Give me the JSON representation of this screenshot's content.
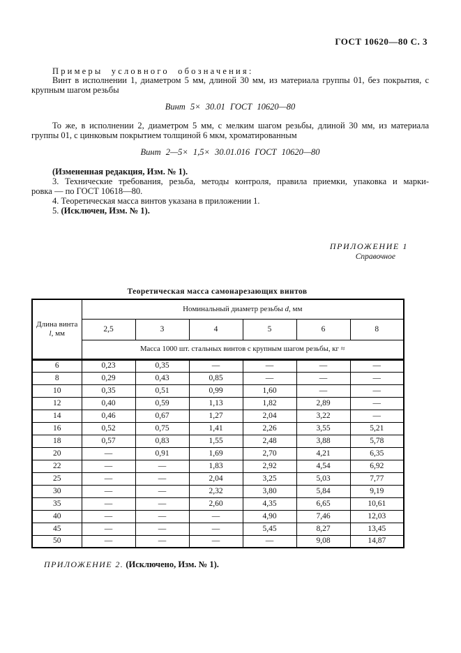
{
  "colors": {
    "text": "#141414",
    "border": "#000000",
    "background": "#ffffff"
  },
  "header": {
    "title": "ГОСТ 10620—80 С. 3"
  },
  "body": {
    "examples_heading": "Примеры условного обозначения:",
    "example1": {
      "line1": "Винт в исполнении 1, диаметром 5 мм, длиной 30 мм, из материала группы 01, без покрытия, с",
      "line2": "крупным шагом резьбы"
    },
    "designation1": "Винт 5× 30.01 ГОСТ 10620—80",
    "example2": {
      "line1": "То же, в исполнении 2, диаметром 5 мм, с мелким шагом резьбы, длиной 30 мм, из материала",
      "line2": "группы 01, с цинковым покрытием толщиной 6 мкм, хроматированным"
    },
    "designation2": "Винт 2—5× 1,5× 30.01.016 ГОСТ 10620—80",
    "amended_note": "(Измененная редакция, Изм. № 1).",
    "item3": {
      "line1": "3. Технические требования, резьба, методы контроля, правила приемки, упаковка и марки-",
      "line2": "ровка — по ГОСТ 10618—80."
    },
    "item4": "4. Теоретическая масса винтов указана в приложении 1.",
    "item5_prefix": "5. ",
    "item5_note": "(Исключен, Изм. № 1)."
  },
  "appendix1": {
    "label": "ПРИЛОЖЕНИЕ 1",
    "subtitle": "Справочное"
  },
  "table": {
    "title": "Теоретическая масса самонарезающих винтов",
    "length_header": {
      "pre": "Длина винта ",
      "var": "l",
      "post": ", мм"
    },
    "diameter_header": {
      "pre": "Номинальный диаметр резьбы ",
      "var": "d",
      "post": ", мм"
    },
    "diameters": [
      "2,5",
      "3",
      "4",
      "5",
      "6",
      "8"
    ],
    "mass_header": "Масса 1000 шт. стальных винтов с крупным шагом резьбы, кг ≈",
    "rows": [
      {
        "length": "6",
        "values": [
          "0,23",
          "0,35",
          "—",
          "—",
          "—",
          "—"
        ]
      },
      {
        "length": "8",
        "values": [
          "0,29",
          "0,43",
          "0,85",
          "—",
          "—",
          "—"
        ]
      },
      {
        "length": "10",
        "values": [
          "0,35",
          "0,51",
          "0,99",
          "1,60",
          "—",
          "—"
        ]
      },
      {
        "length": "12",
        "values": [
          "0,40",
          "0,59",
          "1,13",
          "1,82",
          "2,89",
          "—"
        ]
      },
      {
        "length": "14",
        "values": [
          "0,46",
          "0,67",
          "1,27",
          "2,04",
          "3,22",
          "—"
        ]
      },
      {
        "length": "16",
        "values": [
          "0,52",
          "0,75",
          "1,41",
          "2,26",
          "3,55",
          "5,21"
        ]
      },
      {
        "length": "18",
        "values": [
          "0,57",
          "0,83",
          "1,55",
          "2,48",
          "3,88",
          "5,78"
        ]
      },
      {
        "length": "20",
        "values": [
          "—",
          "0,91",
          "1,69",
          "2,70",
          "4,21",
          "6,35"
        ]
      },
      {
        "length": "22",
        "values": [
          "—",
          "—",
          "1,83",
          "2,92",
          "4,54",
          "6,92"
        ]
      },
      {
        "length": "25",
        "values": [
          "—",
          "—",
          "2,04",
          "3,25",
          "5,03",
          "7,77"
        ]
      },
      {
        "length": "30",
        "values": [
          "—",
          "—",
          "2,32",
          "3,80",
          "5,84",
          "9,19"
        ]
      },
      {
        "length": "35",
        "values": [
          "—",
          "—",
          "2,60",
          "4,35",
          "6,65",
          "10,61"
        ]
      },
      {
        "length": "40",
        "values": [
          "—",
          "—",
          "—",
          "4,90",
          "7,46",
          "12,03"
        ]
      },
      {
        "length": "45",
        "values": [
          "—",
          "—",
          "—",
          "5,45",
          "8,27",
          "13,45"
        ]
      },
      {
        "length": "50",
        "values": [
          "—",
          "—",
          "—",
          "—",
          "9,08",
          "14,87"
        ]
      }
    ]
  },
  "footer": {
    "appendix2_label": "ПРИЛОЖЕНИЕ 2.",
    "appendix2_note": " (Исключено, Изм. № 1)."
  }
}
